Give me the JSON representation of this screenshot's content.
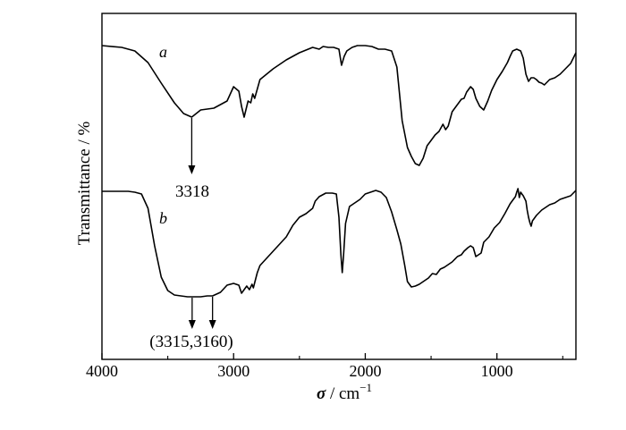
{
  "chart_data": {
    "type": "line",
    "xlabel_symbol": "σ",
    "xlabel_unit": " / cm",
    "xlabel_exp": "−1",
    "ylabel": "Transmittance / %",
    "xlim": [
      4000,
      400
    ],
    "x_reversed": true,
    "y_ticks_shown": false,
    "grid": false,
    "xticks": [
      {
        "value": 4000,
        "label": "4000"
      },
      {
        "value": 3000,
        "label": "3000"
      },
      {
        "value": 2000,
        "label": "2000"
      },
      {
        "value": 1000,
        "label": "1000"
      }
    ],
    "series": [
      {
        "name": "a",
        "color": "#000000",
        "points": [
          [
            4000,
            36
          ],
          [
            3850,
            38
          ],
          [
            3750,
            42
          ],
          [
            3650,
            55
          ],
          [
            3550,
            78
          ],
          [
            3450,
            100
          ],
          [
            3380,
            112
          ],
          [
            3318,
            116
          ],
          [
            3250,
            108
          ],
          [
            3150,
            106
          ],
          [
            3050,
            98
          ],
          [
            3000,
            82
          ],
          [
            2960,
            87
          ],
          [
            2940,
            104
          ],
          [
            2920,
            116
          ],
          [
            2890,
            98
          ],
          [
            2870,
            100
          ],
          [
            2855,
            90
          ],
          [
            2840,
            95
          ],
          [
            2800,
            74
          ],
          [
            2700,
            62
          ],
          [
            2600,
            52
          ],
          [
            2500,
            44
          ],
          [
            2400,
            38
          ],
          [
            2350,
            40
          ],
          [
            2320,
            37
          ],
          [
            2280,
            38
          ],
          [
            2240,
            38
          ],
          [
            2200,
            40
          ],
          [
            2180,
            58
          ],
          [
            2160,
            48
          ],
          [
            2140,
            42
          ],
          [
            2100,
            38
          ],
          [
            2060,
            36
          ],
          [
            2000,
            36
          ],
          [
            1950,
            37
          ],
          [
            1900,
            40
          ],
          [
            1850,
            40
          ],
          [
            1800,
            42
          ],
          [
            1760,
            60
          ],
          [
            1720,
            120
          ],
          [
            1680,
            150
          ],
          [
            1650,
            160
          ],
          [
            1620,
            168
          ],
          [
            1590,
            170
          ],
          [
            1560,
            162
          ],
          [
            1530,
            148
          ],
          [
            1500,
            142
          ],
          [
            1470,
            136
          ],
          [
            1440,
            132
          ],
          [
            1410,
            124
          ],
          [
            1390,
            130
          ],
          [
            1370,
            126
          ],
          [
            1340,
            110
          ],
          [
            1300,
            102
          ],
          [
            1270,
            96
          ],
          [
            1250,
            95
          ],
          [
            1230,
            88
          ],
          [
            1200,
            82
          ],
          [
            1180,
            85
          ],
          [
            1160,
            95
          ],
          [
            1130,
            104
          ],
          [
            1100,
            108
          ],
          [
            1070,
            98
          ],
          [
            1040,
            86
          ],
          [
            1000,
            74
          ],
          [
            960,
            65
          ],
          [
            920,
            55
          ],
          [
            900,
            48
          ],
          [
            880,
            42
          ],
          [
            850,
            40
          ],
          [
            820,
            42
          ],
          [
            800,
            50
          ],
          [
            780,
            68
          ],
          [
            760,
            76
          ],
          [
            740,
            72
          ],
          [
            720,
            72
          ],
          [
            700,
            74
          ],
          [
            680,
            77
          ],
          [
            660,
            78
          ],
          [
            640,
            80
          ],
          [
            600,
            74
          ],
          [
            560,
            72
          ],
          [
            520,
            68
          ],
          [
            480,
            62
          ],
          [
            440,
            56
          ],
          [
            400,
            44
          ]
        ]
      },
      {
        "name": "b",
        "color": "#000000",
        "points": [
          [
            4000,
            199
          ],
          [
            3900,
            199
          ],
          [
            3800,
            199
          ],
          [
            3750,
            200
          ],
          [
            3700,
            202
          ],
          [
            3650,
            218
          ],
          [
            3600,
            260
          ],
          [
            3550,
            295
          ],
          [
            3500,
            310
          ],
          [
            3450,
            315
          ],
          [
            3400,
            316
          ],
          [
            3350,
            317
          ],
          [
            3315,
            317
          ],
          [
            3250,
            317
          ],
          [
            3200,
            316
          ],
          [
            3160,
            316
          ],
          [
            3100,
            312
          ],
          [
            3050,
            304
          ],
          [
            3000,
            302
          ],
          [
            2960,
            304
          ],
          [
            2940,
            313
          ],
          [
            2920,
            309
          ],
          [
            2900,
            305
          ],
          [
            2880,
            309
          ],
          [
            2860,
            303
          ],
          [
            2850,
            307
          ],
          [
            2820,
            290
          ],
          [
            2800,
            282
          ],
          [
            2700,
            266
          ],
          [
            2600,
            250
          ],
          [
            2550,
            237
          ],
          [
            2500,
            228
          ],
          [
            2450,
            224
          ],
          [
            2400,
            218
          ],
          [
            2380,
            210
          ],
          [
            2350,
            205
          ],
          [
            2300,
            201
          ],
          [
            2250,
            201
          ],
          [
            2220,
            202
          ],
          [
            2200,
            228
          ],
          [
            2185,
            270
          ],
          [
            2175,
            290
          ],
          [
            2165,
            270
          ],
          [
            2150,
            235
          ],
          [
            2120,
            216
          ],
          [
            2080,
            212
          ],
          [
            2040,
            208
          ],
          [
            2000,
            202
          ],
          [
            1960,
            200
          ],
          [
            1920,
            198
          ],
          [
            1880,
            200
          ],
          [
            1840,
            206
          ],
          [
            1800,
            222
          ],
          [
            1760,
            242
          ],
          [
            1730,
            258
          ],
          [
            1700,
            282
          ],
          [
            1680,
            300
          ],
          [
            1650,
            306
          ],
          [
            1620,
            305
          ],
          [
            1590,
            303
          ],
          [
            1560,
            300
          ],
          [
            1520,
            296
          ],
          [
            1490,
            291
          ],
          [
            1460,
            292
          ],
          [
            1430,
            286
          ],
          [
            1400,
            284
          ],
          [
            1370,
            281
          ],
          [
            1340,
            278
          ],
          [
            1300,
            272
          ],
          [
            1270,
            270
          ],
          [
            1250,
            266
          ],
          [
            1220,
            262
          ],
          [
            1200,
            260
          ],
          [
            1180,
            262
          ],
          [
            1160,
            272
          ],
          [
            1140,
            270
          ],
          [
            1120,
            268
          ],
          [
            1100,
            256
          ],
          [
            1060,
            250
          ],
          [
            1020,
            240
          ],
          [
            980,
            234
          ],
          [
            940,
            224
          ],
          [
            900,
            213
          ],
          [
            880,
            209
          ],
          [
            860,
            205
          ],
          [
            850,
            200
          ],
          [
            840,
            196
          ],
          [
            830,
            206
          ],
          [
            820,
            200
          ],
          [
            810,
            202
          ],
          [
            800,
            204
          ],
          [
            780,
            210
          ],
          [
            770,
            220
          ],
          [
            760,
            228
          ],
          [
            750,
            234
          ],
          [
            740,
            238
          ],
          [
            730,
            232
          ],
          [
            720,
            230
          ],
          [
            700,
            226
          ],
          [
            660,
            220
          ],
          [
            600,
            214
          ],
          [
            560,
            212
          ],
          [
            520,
            208
          ],
          [
            480,
            206
          ],
          [
            440,
            204
          ],
          [
            400,
            198
          ]
        ]
      }
    ],
    "annotations": [
      {
        "text": "3318",
        "arrow_x": [
          3318
        ]
      },
      {
        "text": "(3315,3160)",
        "arrow_x": [
          3315,
          3160
        ]
      }
    ]
  }
}
